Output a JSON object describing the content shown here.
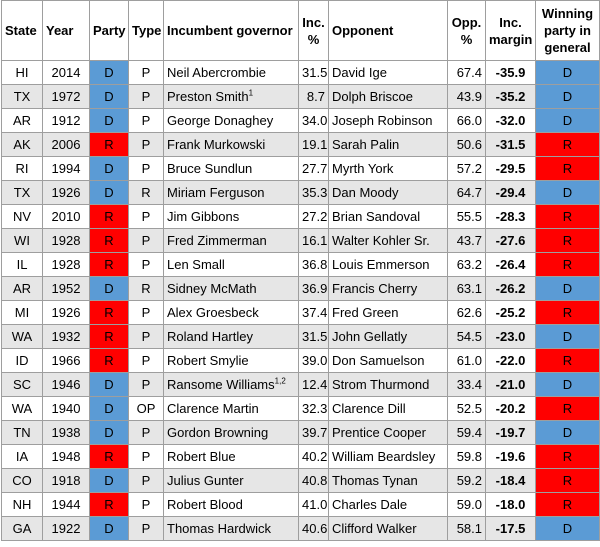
{
  "colors": {
    "D": "#5b9bd5",
    "R": "#ff0000",
    "alt_row": "#e6e6e6"
  },
  "headers": {
    "state": "State",
    "year": "Year",
    "party": "Party",
    "type": "Type",
    "incumbent": "Incumbent governor",
    "inc_pct": "Inc. %",
    "opponent": "Opponent",
    "opp_pct": "Opp. %",
    "margin": "Inc. margin",
    "winner": "Winning party in general"
  },
  "rows": [
    {
      "state": "HI",
      "year": "2014",
      "party": "D",
      "type": "P",
      "incumbent": "Neil Abercrombie",
      "sup": "",
      "inc_pct": "31.5",
      "opponent": "David Ige",
      "opp_pct": "67.4",
      "margin": "-35.9",
      "winner": "D"
    },
    {
      "state": "TX",
      "year": "1972",
      "party": "D",
      "type": "P",
      "incumbent": "Preston Smith",
      "sup": "1",
      "inc_pct": "8.7",
      "opponent": "Dolph Briscoe",
      "opp_pct": "43.9",
      "margin": "-35.2",
      "winner": "D"
    },
    {
      "state": "AR",
      "year": "1912",
      "party": "D",
      "type": "P",
      "incumbent": "George Donaghey",
      "sup": "",
      "inc_pct": "34.0",
      "opponent": "Joseph Robinson",
      "opp_pct": "66.0",
      "margin": "-32.0",
      "winner": "D"
    },
    {
      "state": "AK",
      "year": "2006",
      "party": "R",
      "type": "P",
      "incumbent": "Frank Murkowski",
      "sup": "",
      "inc_pct": "19.1",
      "opponent": "Sarah Palin",
      "opp_pct": "50.6",
      "margin": "-31.5",
      "winner": "R"
    },
    {
      "state": "RI",
      "year": "1994",
      "party": "D",
      "type": "P",
      "incumbent": "Bruce Sundlun",
      "sup": "",
      "inc_pct": "27.7",
      "opponent": "Myrth York",
      "opp_pct": "57.2",
      "margin": "-29.5",
      "winner": "R"
    },
    {
      "state": "TX",
      "year": "1926",
      "party": "D",
      "type": "R",
      "incumbent": "Miriam Ferguson",
      "sup": "",
      "inc_pct": "35.3",
      "opponent": "Dan Moody",
      "opp_pct": "64.7",
      "margin": "-29.4",
      "winner": "D"
    },
    {
      "state": "NV",
      "year": "2010",
      "party": "R",
      "type": "P",
      "incumbent": "Jim Gibbons",
      "sup": "",
      "inc_pct": "27.2",
      "opponent": "Brian Sandoval",
      "opp_pct": "55.5",
      "margin": "-28.3",
      "winner": "R"
    },
    {
      "state": "WI",
      "year": "1928",
      "party": "R",
      "type": "P",
      "incumbent": "Fred Zimmerman",
      "sup": "",
      "inc_pct": "16.1",
      "opponent": "Walter Kohler Sr.",
      "opp_pct": "43.7",
      "margin": "-27.6",
      "winner": "R"
    },
    {
      "state": "IL",
      "year": "1928",
      "party": "R",
      "type": "P",
      "incumbent": "Len Small",
      "sup": "",
      "inc_pct": "36.8",
      "opponent": "Louis Emmerson",
      "opp_pct": "63.2",
      "margin": "-26.4",
      "winner": "R"
    },
    {
      "state": "AR",
      "year": "1952",
      "party": "D",
      "type": "R",
      "incumbent": "Sidney McMath",
      "sup": "",
      "inc_pct": "36.9",
      "opponent": "Francis Cherry",
      "opp_pct": "63.1",
      "margin": "-26.2",
      "winner": "D"
    },
    {
      "state": "MI",
      "year": "1926",
      "party": "R",
      "type": "P",
      "incumbent": "Alex Groesbeck",
      "sup": "",
      "inc_pct": "37.4",
      "opponent": "Fred Green",
      "opp_pct": "62.6",
      "margin": "-25.2",
      "winner": "R"
    },
    {
      "state": "WA",
      "year": "1932",
      "party": "R",
      "type": "P",
      "incumbent": "Roland Hartley",
      "sup": "",
      "inc_pct": "31.5",
      "opponent": "John Gellatly",
      "opp_pct": "54.5",
      "margin": "-23.0",
      "winner": "D"
    },
    {
      "state": "ID",
      "year": "1966",
      "party": "R",
      "type": "P",
      "incumbent": "Robert Smylie",
      "sup": "",
      "inc_pct": "39.0",
      "opponent": "Don Samuelson",
      "opp_pct": "61.0",
      "margin": "-22.0",
      "winner": "R"
    },
    {
      "state": "SC",
      "year": "1946",
      "party": "D",
      "type": "P",
      "incumbent": "Ransome Williams",
      "sup": "1,2",
      "inc_pct": "12.4",
      "opponent": "Strom Thurmond",
      "opp_pct": "33.4",
      "margin": "-21.0",
      "winner": "D"
    },
    {
      "state": "WA",
      "year": "1940",
      "party": "D",
      "type": "OP",
      "incumbent": "Clarence Martin",
      "sup": "",
      "inc_pct": "32.3",
      "opponent": "Clarence Dill",
      "opp_pct": "52.5",
      "margin": "-20.2",
      "winner": "R"
    },
    {
      "state": "TN",
      "year": "1938",
      "party": "D",
      "type": "P",
      "incumbent": "Gordon Browning",
      "sup": "",
      "inc_pct": "39.7",
      "opponent": "Prentice Cooper",
      "opp_pct": "59.4",
      "margin": "-19.7",
      "winner": "D"
    },
    {
      "state": "IA",
      "year": "1948",
      "party": "R",
      "type": "P",
      "incumbent": "Robert Blue",
      "sup": "",
      "inc_pct": "40.2",
      "opponent": "William Beardsley",
      "opp_pct": "59.8",
      "margin": "-19.6",
      "winner": "R"
    },
    {
      "state": "CO",
      "year": "1918",
      "party": "D",
      "type": "P",
      "incumbent": "Julius Gunter",
      "sup": "",
      "inc_pct": "40.8",
      "opponent": "Thomas Tynan",
      "opp_pct": "59.2",
      "margin": "-18.4",
      "winner": "R"
    },
    {
      "state": "NH",
      "year": "1944",
      "party": "R",
      "type": "P",
      "incumbent": "Robert Blood",
      "sup": "",
      "inc_pct": "41.0",
      "opponent": "Charles Dale",
      "opp_pct": "59.0",
      "margin": "-18.0",
      "winner": "R"
    },
    {
      "state": "GA",
      "year": "1922",
      "party": "D",
      "type": "P",
      "incumbent": "Thomas Hardwick",
      "sup": "",
      "inc_pct": "40.6",
      "opponent": "Clifford Walker",
      "opp_pct": "58.1",
      "margin": "-17.5",
      "winner": "D"
    }
  ]
}
